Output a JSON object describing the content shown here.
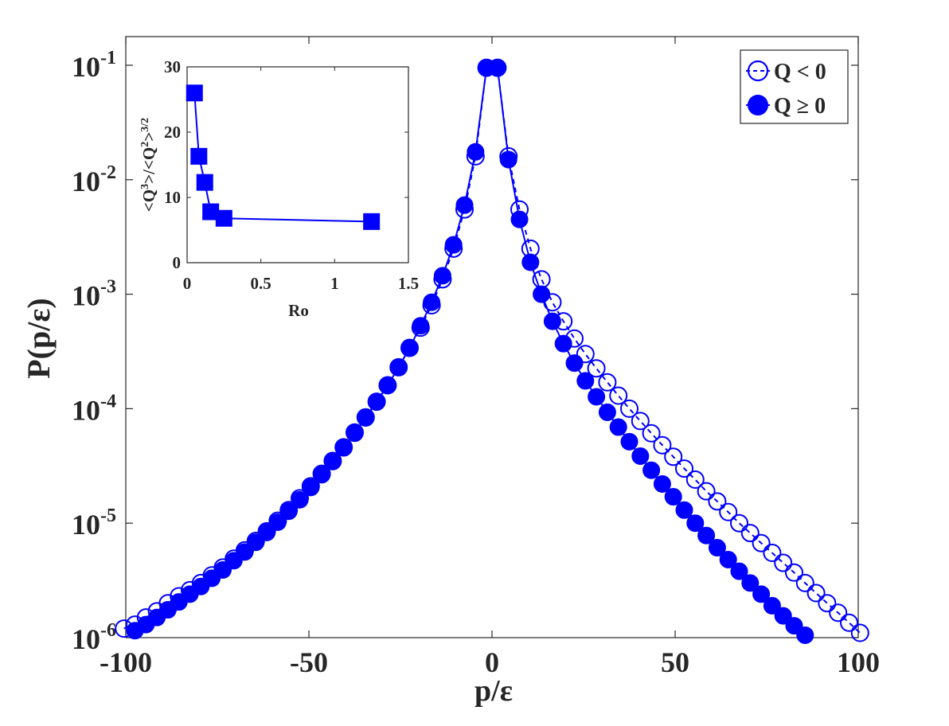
{
  "chart_data": [
    {
      "type": "scatter",
      "xlabel": "p/ε",
      "ylabel": "P(p/ε)",
      "xlim": [
        -100,
        100
      ],
      "ylim_log10": [
        -6,
        -0.75
      ],
      "yscale": "log",
      "xticks": [
        "-100",
        "-50",
        "0",
        "50",
        "100"
      ],
      "yticks": [
        "10^-6",
        "10^-5",
        "10^-4",
        "10^-3",
        "10^-2",
        "10^-1"
      ],
      "grid": false,
      "legend_position": "top-right",
      "colors": {
        "series": "#0000ff",
        "axes": "#262626"
      },
      "series": [
        {
          "name": "Q < 0",
          "marker": "open-circle",
          "line": "dashed",
          "x": [
            -100.5,
            -97.5,
            -94.5,
            -91.5,
            -88.5,
            -85.5,
            -82.5,
            -79.5,
            -76.5,
            -73.5,
            -70.5,
            -67.5,
            -64.5,
            -61.5,
            -58.5,
            -55.5,
            -52.5,
            -49.5,
            -46.5,
            -43.5,
            -40.5,
            -37.5,
            -34.5,
            -31.5,
            -28.5,
            -25.5,
            -22.5,
            -19.5,
            -16.5,
            -13.5,
            -10.5,
            -7.5,
            -4.5,
            -1.5,
            1.5,
            4.5,
            7.5,
            10.5,
            13.5,
            16.5,
            19.5,
            22.5,
            25.5,
            28.5,
            31.5,
            34.5,
            37.5,
            40.5,
            43.5,
            46.5,
            49.5,
            52.5,
            55.5,
            58.5,
            61.5,
            64.5,
            67.5,
            70.5,
            73.5,
            76.5,
            79.5,
            82.5,
            85.5,
            88.5,
            91.5,
            94.5,
            97.5,
            100.5
          ],
          "y": [
            1.2e-06,
            1.3e-06,
            1.5e-06,
            1.7e-06,
            2e-06,
            2.3e-06,
            2.6e-06,
            3e-06,
            3.5e-06,
            4.1e-06,
            4.9e-06,
            5.8e-06,
            7e-06,
            8.5e-06,
            1.05e-05,
            1.3e-05,
            1.65e-05,
            2.1e-05,
            2.7e-05,
            3.5e-05,
            4.6e-05,
            6.2e-05,
            8.4e-05,
            0.000115,
            0.00016,
            0.00023,
            0.00034,
            0.00051,
            0.0008,
            0.00135,
            0.0025,
            0.0055,
            0.016,
            0.095,
            0.095,
            0.016,
            0.0055,
            0.0025,
            0.00135,
            0.00085,
            0.00058,
            0.00041,
            0.0003,
            0.000225,
            0.00017,
            0.00013,
            0.0001,
            7.8e-05,
            6.1e-05,
            4.8e-05,
            3.8e-05,
            3e-05,
            2.4e-05,
            1.9e-05,
            1.55e-05,
            1.25e-05,
            1e-05,
            8.2e-06,
            6.7e-06,
            5.5e-06,
            4.5e-06,
            3.7e-06,
            3e-06,
            2.45e-06,
            2e-06,
            1.65e-06,
            1.35e-06,
            1.1e-06
          ]
        },
        {
          "name": "Q ≥ 0",
          "marker": "filled-circle",
          "line": "solid",
          "x": [
            -97.5,
            -94.5,
            -91.5,
            -88.5,
            -85.5,
            -82.5,
            -79.5,
            -76.5,
            -73.5,
            -70.5,
            -67.5,
            -64.5,
            -61.5,
            -58.5,
            -55.5,
            -52.5,
            -49.5,
            -46.5,
            -43.5,
            -40.5,
            -37.5,
            -34.5,
            -31.5,
            -28.5,
            -25.5,
            -22.5,
            -19.5,
            -16.5,
            -13.5,
            -10.5,
            -7.5,
            -4.5,
            -1.5,
            1.5,
            4.5,
            7.5,
            10.5,
            13.5,
            16.5,
            19.5,
            22.5,
            25.5,
            28.5,
            31.5,
            34.5,
            37.5,
            40.5,
            43.5,
            46.5,
            49.5,
            52.5,
            55.5,
            58.5,
            61.5,
            64.5,
            67.5,
            70.5,
            73.5,
            76.5,
            79.5,
            82.5,
            85.5
          ],
          "y": [
            1.15e-06,
            1.3e-06,
            1.5e-06,
            1.75e-06,
            2.05e-06,
            2.4e-06,
            2.8e-06,
            3.3e-06,
            3.9e-06,
            4.7e-06,
            5.6e-06,
            6.8e-06,
            8.3e-06,
            1.02e-05,
            1.27e-05,
            1.6e-05,
            2.05e-05,
            2.65e-05,
            3.45e-05,
            4.55e-05,
            6.1e-05,
            8.3e-05,
            0.000115,
            0.00016,
            0.00023,
            0.00034,
            0.00053,
            0.00085,
            0.00145,
            0.0027,
            0.006,
            0.0175,
            0.095,
            0.095,
            0.015,
            0.0045,
            0.0019,
            0.001,
            0.00058,
            0.00037,
            0.00025,
            0.000175,
            0.000127,
            9.3e-05,
            6.9e-05,
            5.15e-05,
            3.85e-05,
            2.9e-05,
            2.2e-05,
            1.7e-05,
            1.3e-05,
            1e-05,
            7.8e-06,
            6.1e-06,
            4.8e-06,
            3.8e-06,
            3e-06,
            2.4e-06,
            1.9e-06,
            1.55e-06,
            1.27e-06,
            1.05e-06
          ]
        }
      ]
    },
    {
      "type": "line",
      "xlabel": "Ro",
      "ylabel": "<Q^3>/<Q^2>^{3/2}",
      "xlim": [
        0,
        1.5
      ],
      "ylim": [
        0,
        30
      ],
      "xticks": [
        "0",
        "0.5",
        "1",
        "1.5"
      ],
      "yticks": [
        "0",
        "10",
        "20",
        "30"
      ],
      "marker": "filled-square",
      "series": [
        {
          "x": [
            0.05,
            0.08,
            0.12,
            0.16,
            0.25,
            1.25
          ],
          "y": [
            26.0,
            16.3,
            12.3,
            7.8,
            6.8,
            6.3
          ]
        }
      ]
    }
  ]
}
